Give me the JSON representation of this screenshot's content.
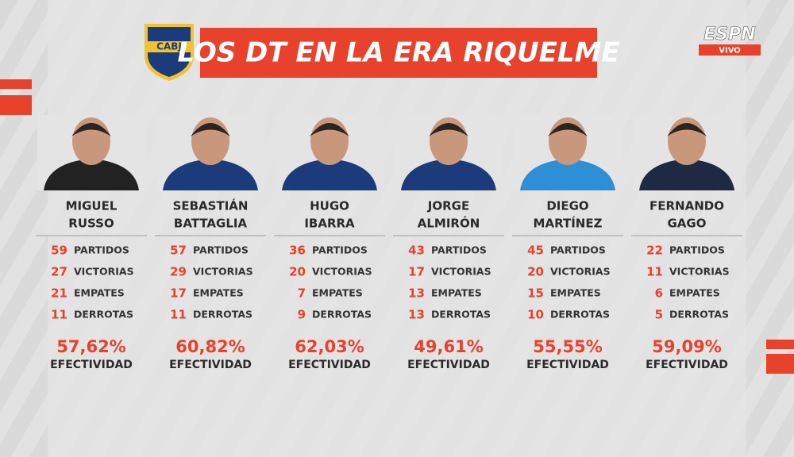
{
  "header": {
    "title": "LOS DT EN LA ERA RIQUELME",
    "logo": "CABJ",
    "network": "ESPN",
    "live": "VIVO"
  },
  "coaches": [
    {
      "name": [
        "MIGUEL",
        "RUSSO"
      ],
      "stats": [
        {
          "value": "59",
          "label": "PARTIDOS"
        },
        {
          "value": "27",
          "label": "VICTORIAS"
        },
        {
          "value": "21",
          "label": "EMPATES"
        },
        {
          "value": "11",
          "label": "DERROTAS"
        }
      ],
      "efectividad": {
        "value": "57,62%",
        "label": "EFECTIVIDAD"
      }
    },
    {
      "name": [
        "SEBASTIÁN",
        "BATTAGLIA"
      ],
      "stats": [
        {
          "value": "57",
          "label": "PARTIDOS"
        },
        {
          "value": "29",
          "label": "VICTORIAS"
        },
        {
          "value": "17",
          "label": "EMPATES"
        },
        {
          "value": "11",
          "label": "DERROTAS"
        }
      ],
      "efectividad": {
        "value": "60,82%",
        "label": "EFECTIVIDAD"
      }
    },
    {
      "name": [
        "HUGO",
        "IBARRA"
      ],
      "stats": [
        {
          "value": "36",
          "label": "PARTIDOS"
        },
        {
          "value": "20",
          "label": "VICTORIAS"
        },
        {
          "value": "7",
          "label": "EMPATES"
        },
        {
          "value": "9",
          "label": "DERROTAS"
        }
      ],
      "efectividad": {
        "value": "62,03%",
        "label": "EFECTIVIDAD"
      }
    },
    {
      "name": [
        "JORGE",
        "ALMIRÓN"
      ],
      "stats": [
        {
          "value": "43",
          "label": "PARTIDOS"
        },
        {
          "value": "17",
          "label": "VICTORIAS"
        },
        {
          "value": "13",
          "label": "EMPATES"
        },
        {
          "value": "13",
          "label": "DERROTAS"
        }
      ],
      "efectividad": {
        "value": "49,61%",
        "label": "EFECTIVIDAD"
      }
    },
    {
      "name": [
        "DIEGO",
        "MARTÍNEZ"
      ],
      "stats": [
        {
          "value": "45",
          "label": "PARTIDOS"
        },
        {
          "value": "20",
          "label": "VICTORIAS"
        },
        {
          "value": "15",
          "label": "EMPATES"
        },
        {
          "value": "10",
          "label": "DERROTAS"
        }
      ],
      "efectividad": {
        "value": "55,55%",
        "label": "EFECTIVIDAD"
      }
    },
    {
      "name": [
        "FERNANDO",
        "GAGO"
      ],
      "stats": [
        {
          "value": "22",
          "label": "PARTIDOS"
        },
        {
          "value": "11",
          "label": "VICTORIAS"
        },
        {
          "value": "6",
          "label": "EMPATES"
        },
        {
          "value": "5",
          "label": "DERROTAS"
        }
      ],
      "efectividad": {
        "value": "59,09%",
        "label": "EFECTIVIDAD"
      }
    }
  ]
}
